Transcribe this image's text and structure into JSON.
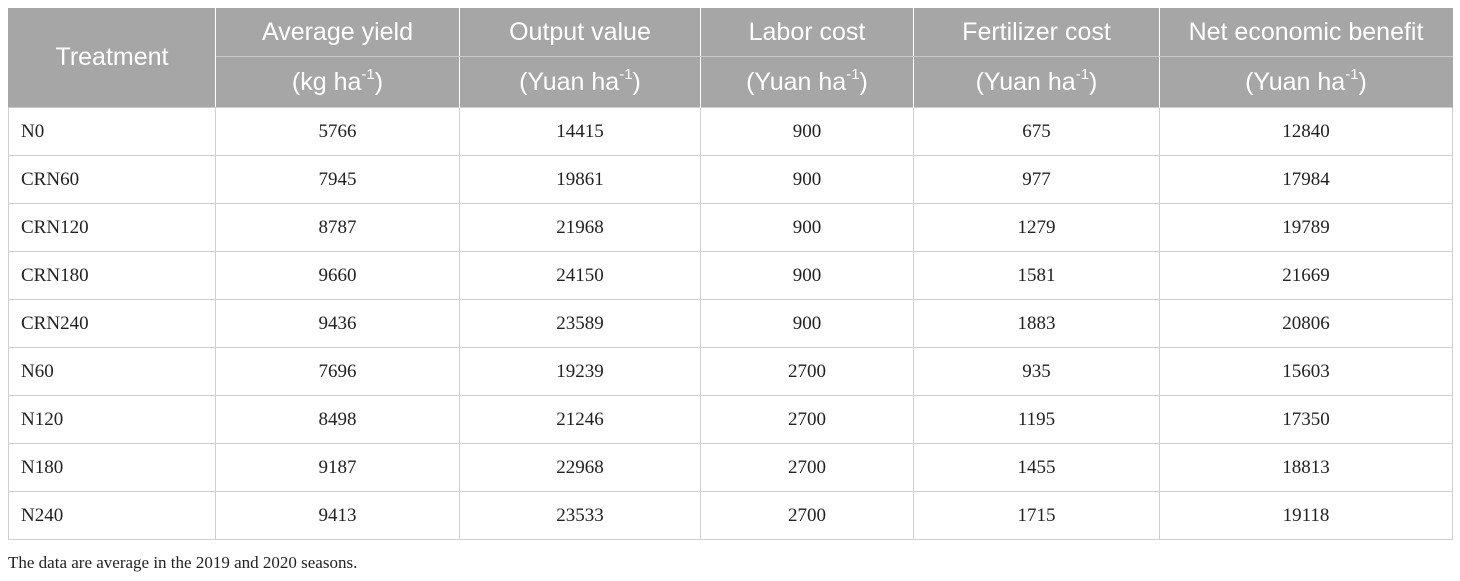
{
  "table": {
    "headers": [
      {
        "name": "Treatment",
        "unit_base": "",
        "unit_exp": "",
        "unit_tail": ""
      },
      {
        "name": "Average yield",
        "unit_base": "(kg ha",
        "unit_exp": "-1",
        "unit_tail": ")"
      },
      {
        "name": "Output value",
        "unit_base": "(Yuan ha",
        "unit_exp": "-1",
        "unit_tail": ")"
      },
      {
        "name": "Labor cost",
        "unit_base": "(Yuan ha",
        "unit_exp": "-1",
        "unit_tail": ")"
      },
      {
        "name": "Fertilizer cost",
        "unit_base": "(Yuan ha",
        "unit_exp": "-1",
        "unit_tail": ")"
      },
      {
        "name": "Net economic benefit",
        "unit_base": "(Yuan ha",
        "unit_exp": "-1",
        "unit_tail": ")"
      }
    ],
    "rows": [
      [
        "N0",
        "5766",
        "14415",
        "900",
        "675",
        "12840"
      ],
      [
        "CRN60",
        "7945",
        "19861",
        "900",
        "977",
        "17984"
      ],
      [
        "CRN120",
        "8787",
        "21968",
        "900",
        "1279",
        "19789"
      ],
      [
        "CRN180",
        "9660",
        "24150",
        "900",
        "1581",
        "21669"
      ],
      [
        "CRN240",
        "9436",
        "23589",
        "900",
        "1883",
        "20806"
      ],
      [
        "N60",
        "7696",
        "19239",
        "2700",
        "935",
        "15603"
      ],
      [
        "N120",
        "8498",
        "21246",
        "2700",
        "1195",
        "17350"
      ],
      [
        "N180",
        "9187",
        "22968",
        "2700",
        "1455",
        "18813"
      ],
      [
        "N240",
        "9413",
        "23533",
        "2700",
        "1715",
        "19118"
      ]
    ]
  },
  "footnote": "The data are average in the 2019 and 2020 seasons.",
  "colors": {
    "header_bg": "#a6a6a6",
    "header_text": "#ffffff",
    "grid": "#d0d0d0"
  }
}
